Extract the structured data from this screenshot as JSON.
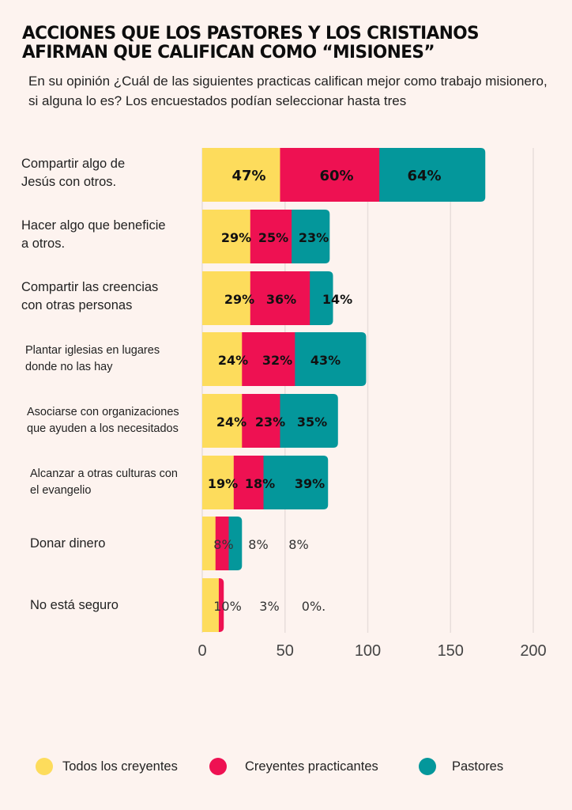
{
  "title_lines": [
    "ACCIONES QUE LOS PASTORES Y LOS CRISTIANOS",
    "AFIRMAN QUE CALIFICAN COMO “MISIONES”"
  ],
  "subtitle": "En su opinión ¿Cuál de las siguientes practicas califican mejor como trabajo misionero, si alguna lo es? Los encuestados podían seleccionar hasta tres",
  "colors": {
    "background": "#fdf3ef",
    "todos": "#fddc5c",
    "practicantes": "#ee1152",
    "pastores": "#04979b",
    "grid": "#e8dedb"
  },
  "chart_data": {
    "type": "bar",
    "orientation": "horizontal",
    "stacked": true,
    "title": "ACCIONES QUE LOS PASTORES Y LOS CRISTIANOS AFIRMAN QUE CALIFICAN COMO “MISIONES”",
    "subtitle": "En su opinión ¿Cuál de las siguientes practicas califican mejor como trabajo misionero, si alguna lo es? Los encuestados podían seleccionar hasta tres",
    "categories": [
      "Compartir algo de\nJesús con otros.",
      "Hacer algo que beneficie\na otros.",
      "Compartir las creencias\ncon otras personas",
      "Plantar iglesias en lugares\ndonde no las hay",
      "Asociarse con organizaciones\nque ayuden a los necesitados",
      "Alcanzar a otras culturas con\nel evangelio",
      "Donar dinero",
      "No está seguro"
    ],
    "series": [
      {
        "name": "Todos los creyentes",
        "color": "#fddc5c",
        "values": [
          47,
          29,
          29,
          24,
          24,
          19,
          8,
          10
        ]
      },
      {
        "name": "Creyentes practicantes",
        "color": "#ee1152",
        "values": [
          60,
          25,
          36,
          32,
          23,
          18,
          8,
          3
        ]
      },
      {
        "name": "Pastores",
        "color": "#04979b",
        "values": [
          64,
          23,
          14,
          43,
          35,
          39,
          8,
          0
        ]
      }
    ],
    "data_labels": [
      [
        "47%",
        "60%",
        "64%"
      ],
      [
        "29%",
        "25%",
        "23%"
      ],
      [
        "29%",
        "36%",
        "14%"
      ],
      [
        "24%",
        "32%",
        "43%"
      ],
      [
        "24%",
        "23%",
        "35%"
      ],
      [
        "19%",
        "18%",
        "39%"
      ],
      [
        "8%",
        "8%",
        "8%"
      ],
      [
        "10%",
        "3%",
        "0%."
      ]
    ],
    "xlabel": "",
    "ylabel": "",
    "xlim": [
      0,
      200
    ],
    "xticks": [
      0,
      50,
      100,
      150,
      200
    ],
    "xtick_labels": [
      "0",
      "50",
      "100",
      "150",
      "200"
    ],
    "grid": true,
    "legend": "bottom"
  },
  "legend": [
    {
      "label": "Todos los creyentes",
      "color": "#fddc5c"
    },
    {
      "label": "Creyentes practicantes",
      "color": "#ee1152"
    },
    {
      "label": "Pastores",
      "color": "#04979b"
    }
  ]
}
